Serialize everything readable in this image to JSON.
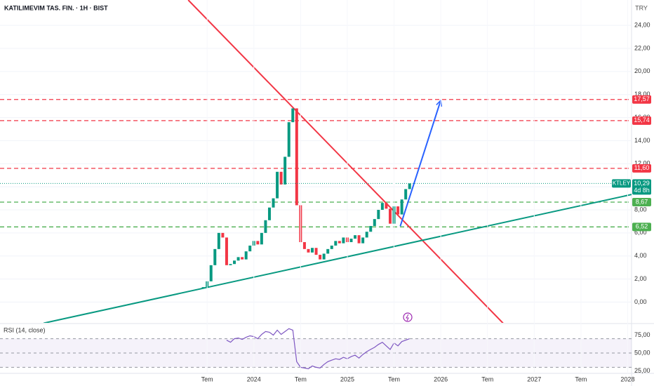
{
  "chart_data": {
    "type": "candlestick",
    "title": "KATILIMEVIM TAS. FIN. · 1H · BIST",
    "currency": "TRY",
    "ylim": [
      -1.8,
      26.2
    ],
    "yticks": [
      {
        "value": 0,
        "label": "0,00"
      },
      {
        "value": 2,
        "label": "2,00"
      },
      {
        "value": 4,
        "label": "4,00"
      },
      {
        "value": 6,
        "label": "6,00"
      },
      {
        "value": 8,
        "label": "8,00"
      },
      {
        "value": 10,
        "label": "10,00"
      },
      {
        "value": 12,
        "label": "12,00"
      },
      {
        "value": 14,
        "label": "14,00"
      },
      {
        "value": 16,
        "label": "16,00"
      },
      {
        "value": 18,
        "label": "18,00"
      },
      {
        "value": 20,
        "label": "20,00"
      },
      {
        "value": 22,
        "label": "22,00"
      },
      {
        "value": 24,
        "label": "24,00"
      }
    ],
    "xlim": [
      -20.6,
      60.5
    ],
    "xticks": [
      {
        "value": 6,
        "label": "Tem"
      },
      {
        "value": 12,
        "label": "2024"
      },
      {
        "value": 18,
        "label": "Tem"
      },
      {
        "value": 24,
        "label": "2025"
      },
      {
        "value": 30,
        "label": "Tem"
      },
      {
        "value": 36,
        "label": "2026"
      },
      {
        "value": 42,
        "label": "Tem"
      },
      {
        "value": 48,
        "label": "2027"
      },
      {
        "value": 54,
        "label": "Tem"
      },
      {
        "value": 60,
        "label": "2028"
      }
    ],
    "grid": true,
    "up_color": "#089981",
    "down_color": "#f23645",
    "x": [
      5.5,
      6,
      6.5,
      7,
      7.5,
      8,
      8.5,
      9,
      9.5,
      10,
      10.5,
      11,
      11.5,
      12,
      12.5,
      13,
      13.5,
      14,
      14.5,
      15,
      15.5,
      16,
      16.5,
      17,
      17.5,
      18,
      18.5,
      19,
      19.5,
      20,
      20.5,
      21,
      21.5,
      22,
      22.5,
      23,
      23.5,
      24,
      24.5,
      25,
      25.5,
      26,
      26.5,
      27,
      27.5,
      28,
      28.5,
      29,
      29.5,
      30,
      30.5,
      31,
      31.5,
      32
    ],
    "open": [
      1.2,
      1.3,
      1.8,
      3.2,
      4.6,
      6.0,
      5.6,
      3.2,
      3.3,
      3.6,
      3.9,
      3.7,
      4.4,
      4.9,
      5.3,
      5.0,
      6.0,
      7.1,
      8.2,
      9.0,
      11.3,
      10.2,
      12.6,
      15.6,
      16.8,
      8.4,
      5.2,
      4.6,
      4.3,
      4.7,
      4.1,
      3.7,
      4.2,
      4.6,
      4.9,
      5.3,
      5.1,
      5.6,
      5.2,
      5.5,
      5.8,
      5.1,
      5.6,
      6.1,
      6.6,
      7.2,
      8.0,
      8.6,
      8.1,
      6.8,
      8.3,
      7.6,
      8.9,
      9.8
    ],
    "close": [
      1.3,
      1.8,
      3.2,
      4.6,
      6.0,
      5.6,
      3.2,
      3.3,
      3.6,
      3.9,
      3.7,
      4.4,
      4.9,
      5.3,
      5.0,
      6.0,
      7.1,
      8.2,
      9.0,
      11.3,
      10.2,
      12.6,
      15.6,
      16.8,
      8.4,
      5.2,
      4.6,
      4.3,
      4.7,
      4.1,
      3.7,
      4.2,
      4.6,
      4.9,
      5.3,
      5.1,
      5.6,
      5.2,
      5.5,
      5.8,
      5.1,
      5.6,
      6.1,
      6.6,
      7.2,
      8.0,
      8.6,
      8.1,
      6.8,
      8.3,
      7.6,
      8.9,
      9.8,
      10.29
    ],
    "levels": [
      {
        "value": 17.57,
        "label": "17,57",
        "color": "#f23645"
      },
      {
        "value": 15.74,
        "label": "15,74",
        "color": "#f23645"
      },
      {
        "value": 11.6,
        "label": "11,60",
        "color": "#f23645"
      },
      {
        "value": 8.67,
        "label": "8,67",
        "color": "#4caf50"
      },
      {
        "value": 6.52,
        "label": "6,52",
        "color": "#4caf50"
      }
    ],
    "last_price": {
      "symbol": "KTLEY",
      "value": 10.29,
      "label": "10,29",
      "countdown": "4d 8h",
      "color": "#089981"
    },
    "drawings": [
      {
        "color": "#f23645",
        "points": [
          [
            3.57,
            26.2
          ],
          [
            44.0,
            -1.83
          ]
        ]
      },
      {
        "color": "#089981",
        "points": [
          [
            -15.0,
            -1.83
          ],
          [
            60.5,
            9.33
          ]
        ]
      },
      {
        "color": "#2962ff",
        "arrow": true,
        "points": [
          [
            30.8,
            6.58
          ],
          [
            36.0,
            17.5
          ]
        ]
      }
    ],
    "rsi": {
      "label": "RSI (14, close)",
      "color": "#7e57c2",
      "ylim": [
        21.6,
        90.2
      ],
      "yticks": [
        {
          "value": 25,
          "label": "25,00"
        },
        {
          "value": 50,
          "label": "50,00"
        },
        {
          "value": 75,
          "label": "75,00"
        }
      ],
      "levels": [
        70,
        50,
        30
      ],
      "values": [
        null,
        null,
        null,
        null,
        null,
        null,
        68,
        65,
        70,
        71,
        69,
        72,
        74,
        73,
        70,
        76,
        80,
        79,
        75,
        82,
        76,
        80,
        84,
        82,
        38,
        30,
        29,
        28,
        32,
        30,
        29,
        34,
        38,
        40,
        42,
        41,
        44,
        42,
        45,
        47,
        43,
        48,
        52,
        55,
        58,
        62,
        65,
        60,
        55,
        64,
        60,
        66,
        68,
        70
      ]
    }
  }
}
